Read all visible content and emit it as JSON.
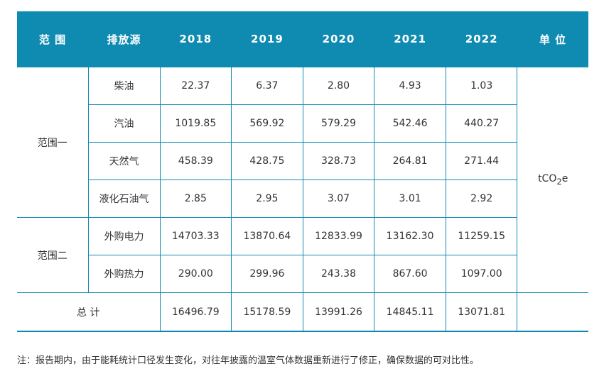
{
  "headers": [
    "范 围",
    "排放源",
    "2018",
    "2019",
    "2020",
    "2021",
    "2022",
    "单 位"
  ],
  "scope1": {
    "label": "范围一",
    "rows": [
      {
        "source": "柴油",
        "values": [
          "22.37",
          "6.37",
          "2.80",
          "4.93",
          "1.03"
        ]
      },
      {
        "source": "汽油",
        "values": [
          "1019.85",
          "569.92",
          "579.29",
          "542.46",
          "440.27"
        ]
      },
      {
        "source": "天然气",
        "values": [
          "458.39",
          "428.75",
          "328.73",
          "264.81",
          "271.44"
        ]
      },
      {
        "source": "液化石油气",
        "values": [
          "2.85",
          "2.95",
          "3.07",
          "3.01",
          "2.92"
        ]
      }
    ]
  },
  "scope2": {
    "label": "范围二",
    "rows": [
      {
        "source": "外购电力",
        "values": [
          "14703.33",
          "13870.64",
          "12833.99",
          "13162.30",
          "11259.15"
        ]
      },
      {
        "source": "外购热力",
        "values": [
          "290.00",
          "299.96",
          "243.38",
          "867.60",
          "1097.00"
        ]
      }
    ]
  },
  "total": {
    "label": "总 计",
    "values": [
      "16496.79",
      "15178.59",
      "13991.26",
      "14845.11",
      "13071.81"
    ]
  },
  "unit": {
    "prefix": "tCO",
    "subscript": "2",
    "suffix": "e"
  },
  "note": "注：报告期内，由于能耗统计口径发生变化，对往年披露的温室气体数据重新进行了修正，确保数据的可对比性。"
}
